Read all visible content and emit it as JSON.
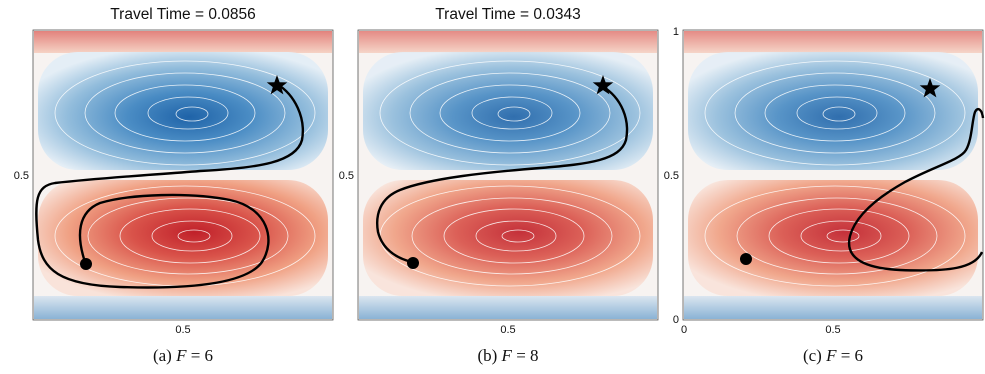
{
  "figure": {
    "panels": [
      {
        "id": "a",
        "title": "Travel Time = 0.0856",
        "caption_prefix": "(a) ",
        "caption_var": "F",
        "caption_rest": " = 6",
        "y_tick_label": "0.5",
        "x_tick_label": "0.5"
      },
      {
        "id": "b",
        "title": "Travel Time = 0.0343",
        "caption_prefix": "(b) ",
        "caption_var": "F",
        "caption_rest": " = 8",
        "y_tick_label": "0.5",
        "x_tick_label": "0.5"
      },
      {
        "id": "c",
        "title": "",
        "caption_prefix": "(c) ",
        "caption_var": "F",
        "caption_rest": " = 6",
        "y_tick_labels": [
          "1",
          "0.5",
          "0"
        ],
        "x_tick_labels": [
          "0",
          "0.5"
        ]
      }
    ],
    "colors": {
      "blue_core": "#2a6fb0",
      "red_core": "#cc2a2c",
      "path": "#000000",
      "streamline": "#ffffff"
    },
    "markers": {
      "start": "circle",
      "goal": "star-icon"
    }
  }
}
